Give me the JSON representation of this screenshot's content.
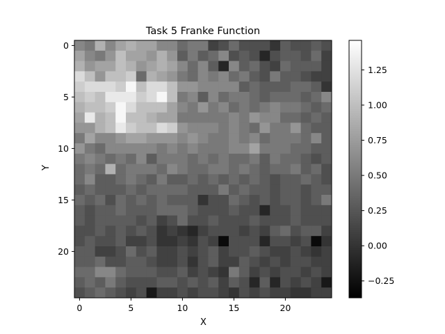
{
  "chart_data": {
    "type": "heatmap",
    "title": "Task 5 Franke Function",
    "xlabel": "X",
    "ylabel": "Y",
    "colormap": "gray",
    "rows": 25,
    "cols": 25,
    "xlim": [
      -0.5,
      24.5
    ],
    "ylim": [
      24.5,
      -0.5
    ],
    "x_ticks": [
      0,
      5,
      10,
      15,
      20
    ],
    "y_ticks": [
      0,
      5,
      10,
      15,
      20
    ],
    "colorbar": {
      "vmin": -0.37,
      "vmax": 1.46,
      "ticks": [
        -0.25,
        0.0,
        0.25,
        0.5,
        0.75,
        1.0,
        1.25
      ],
      "tick_labels": [
        "−0.25",
        "0.00",
        "0.25",
        "0.50",
        "0.75",
        "1.00",
        "1.25"
      ]
    },
    "values": [
      [
        0.6,
        0.5,
        0.9,
        0.6,
        0.8,
        0.9,
        0.8,
        0.8,
        0.6,
        0.6,
        0.4,
        0.5,
        0.5,
        0.1,
        0.2,
        0.4,
        0.2,
        0.2,
        0.2,
        0.0,
        0.3,
        0.2,
        0.2,
        0.3,
        0.2
      ],
      [
        0.8,
        0.6,
        0.5,
        0.7,
        1.0,
        0.8,
        0.8,
        0.7,
        0.9,
        0.7,
        0.3,
        0.5,
        0.3,
        0.4,
        0.6,
        0.2,
        0.3,
        0.2,
        -0.1,
        0.2,
        0.3,
        0.3,
        0.2,
        0.4,
        0.1
      ],
      [
        0.9,
        0.7,
        0.8,
        0.8,
        1.0,
        0.9,
        0.7,
        0.8,
        0.9,
        0.8,
        0.6,
        0.4,
        0.6,
        0.3,
        -0.1,
        0.6,
        0.3,
        0.4,
        0.2,
        0.1,
        0.4,
        0.3,
        0.3,
        0.3,
        0.1
      ],
      [
        1.2,
        1.0,
        0.7,
        1.0,
        1.0,
        1.1,
        0.4,
        0.9,
        0.8,
        0.7,
        0.5,
        0.4,
        0.6,
        0.5,
        0.6,
        0.4,
        0.5,
        0.3,
        0.2,
        0.5,
        0.3,
        0.3,
        0.2,
        0.1,
        0.1
      ],
      [
        1.1,
        1.2,
        1.2,
        1.2,
        1.1,
        1.4,
        1.0,
        1.2,
        1.2,
        1.0,
        0.7,
        0.7,
        0.6,
        0.6,
        0.6,
        0.6,
        0.3,
        0.4,
        0.3,
        0.3,
        0.3,
        0.4,
        0.4,
        0.3,
        0.0
      ],
      [
        1.0,
        1.1,
        1.0,
        1.3,
        1.3,
        1.3,
        1.1,
        1.2,
        1.4,
        1.0,
        0.5,
        0.6,
        0.3,
        0.6,
        0.4,
        0.5,
        0.5,
        0.4,
        0.3,
        0.4,
        0.4,
        0.4,
        0.3,
        0.4,
        0.6
      ],
      [
        0.9,
        1.0,
        1.0,
        1.1,
        1.4,
        1.2,
        1.0,
        1.0,
        1.0,
        0.8,
        0.6,
        0.5,
        0.7,
        0.5,
        0.6,
        0.4,
        0.5,
        0.4,
        0.5,
        0.6,
        0.5,
        0.5,
        0.4,
        0.3,
        0.4
      ],
      [
        0.8,
        1.3,
        0.9,
        1.0,
        1.4,
        1.0,
        1.0,
        0.9,
        0.8,
        0.8,
        0.5,
        0.5,
        0.5,
        0.5,
        0.5,
        0.6,
        0.5,
        0.7,
        0.6,
        0.6,
        0.4,
        0.4,
        0.3,
        0.4,
        0.3
      ],
      [
        0.7,
        0.7,
        0.9,
        1.0,
        1.3,
        1.1,
        1.0,
        1.0,
        1.2,
        1.1,
        0.7,
        0.6,
        0.6,
        0.6,
        0.5,
        0.6,
        0.5,
        0.4,
        0.7,
        0.5,
        0.5,
        0.7,
        0.4,
        0.3,
        0.3
      ],
      [
        0.5,
        0.8,
        0.6,
        0.6,
        0.7,
        0.8,
        0.8,
        0.7,
        0.7,
        0.7,
        0.6,
        0.7,
        0.6,
        0.5,
        0.5,
        0.6,
        0.5,
        0.6,
        0.4,
        0.5,
        0.5,
        0.5,
        0.4,
        0.6,
        0.3
      ],
      [
        0.7,
        0.5,
        0.4,
        0.6,
        0.6,
        0.6,
        0.6,
        0.6,
        0.5,
        0.6,
        0.5,
        0.6,
        0.5,
        0.5,
        0.5,
        0.6,
        0.6,
        0.8,
        0.5,
        0.5,
        0.5,
        0.4,
        0.4,
        0.3,
        0.3
      ],
      [
        0.5,
        0.6,
        0.5,
        0.4,
        0.5,
        0.4,
        0.6,
        0.3,
        0.5,
        0.5,
        0.5,
        0.4,
        0.5,
        0.4,
        0.5,
        0.4,
        0.4,
        0.5,
        0.3,
        0.5,
        0.4,
        0.4,
        0.3,
        0.2,
        0.3
      ],
      [
        0.4,
        0.5,
        0.4,
        0.9,
        0.4,
        0.5,
        0.5,
        0.5,
        0.4,
        0.6,
        0.5,
        0.4,
        0.4,
        0.5,
        0.5,
        0.4,
        0.5,
        0.4,
        0.3,
        0.4,
        0.4,
        0.5,
        0.3,
        0.4,
        0.2
      ],
      [
        0.4,
        0.6,
        0.3,
        0.3,
        0.4,
        0.5,
        0.4,
        0.3,
        0.5,
        0.3,
        0.3,
        0.4,
        0.3,
        0.4,
        0.3,
        0.4,
        0.3,
        0.4,
        0.3,
        0.2,
        0.3,
        0.3,
        0.4,
        0.3,
        0.2
      ],
      [
        0.3,
        0.4,
        0.3,
        0.3,
        0.3,
        0.4,
        0.3,
        0.4,
        0.4,
        0.4,
        0.4,
        0.3,
        0.3,
        0.3,
        0.5,
        0.3,
        0.4,
        0.3,
        0.3,
        0.2,
        0.3,
        0.3,
        0.2,
        0.3,
        0.3
      ],
      [
        0.4,
        0.3,
        0.4,
        0.2,
        0.4,
        0.3,
        0.4,
        0.3,
        0.4,
        0.3,
        0.3,
        0.3,
        0.0,
        0.2,
        0.2,
        0.4,
        0.3,
        0.2,
        0.3,
        0.2,
        0.3,
        0.3,
        0.2,
        0.3,
        0.5
      ],
      [
        0.3,
        0.2,
        0.3,
        0.3,
        0.4,
        0.3,
        0.3,
        0.3,
        0.4,
        0.4,
        0.4,
        0.3,
        0.2,
        0.2,
        0.2,
        0.3,
        0.2,
        0.2,
        -0.1,
        0.2,
        0.2,
        0.3,
        0.2,
        0.2,
        0.2
      ],
      [
        0.3,
        0.2,
        0.3,
        0.3,
        0.3,
        0.3,
        0.2,
        0.3,
        0.1,
        0.2,
        0.4,
        0.2,
        0.2,
        0.3,
        0.2,
        0.2,
        0.2,
        0.3,
        0.2,
        0.2,
        0.2,
        0.3,
        0.2,
        0.2,
        0.2
      ],
      [
        0.2,
        0.2,
        0.3,
        0.2,
        0.3,
        0.2,
        0.3,
        0.2,
        0.0,
        0.1,
        0.0,
        -0.1,
        0.1,
        0.2,
        0.2,
        0.2,
        0.1,
        0.2,
        0.1,
        0.3,
        0.4,
        0.2,
        0.3,
        0.3,
        0.1
      ],
      [
        0.2,
        0.3,
        0.2,
        0.2,
        0.3,
        0.1,
        0.1,
        0.2,
        0.0,
        0.0,
        0.1,
        0.0,
        0.2,
        0.1,
        -0.3,
        0.2,
        0.2,
        0.2,
        -0.1,
        0.2,
        0.2,
        0.1,
        0.2,
        -0.3,
        0.0
      ],
      [
        0.3,
        0.3,
        0.1,
        0.1,
        0.2,
        0.4,
        0.2,
        0.3,
        0.1,
        0.1,
        0.2,
        0.1,
        0.2,
        0.3,
        0.1,
        0.2,
        0.2,
        0.3,
        0.2,
        0.1,
        0.1,
        0.2,
        0.1,
        0.0,
        0.1
      ],
      [
        0.3,
        0.3,
        0.4,
        0.2,
        0.2,
        0.3,
        0.3,
        0.2,
        0.1,
        0.1,
        0.2,
        0.0,
        0.2,
        0.3,
        0.1,
        0.1,
        0.3,
        0.2,
        0.1,
        0.2,
        0.1,
        0.2,
        0.2,
        0.1,
        0.1
      ],
      [
        0.4,
        0.4,
        0.6,
        0.6,
        0.4,
        0.3,
        0.3,
        0.3,
        0.2,
        0.2,
        0.3,
        0.1,
        0.2,
        0.1,
        0.0,
        0.5,
        0.3,
        0.1,
        0.2,
        0.1,
        0.2,
        0.2,
        0.1,
        0.2,
        0.1
      ],
      [
        0.3,
        0.4,
        0.3,
        0.5,
        0.3,
        0.2,
        0.2,
        0.2,
        0.3,
        0.3,
        0.2,
        0.3,
        0.2,
        0.3,
        0.1,
        0.3,
        0.2,
        -0.1,
        0.3,
        -0.1,
        0.2,
        0.1,
        0.2,
        0.1,
        -0.2
      ],
      [
        0.2,
        0.3,
        0.4,
        0.3,
        0.2,
        0.1,
        0.2,
        -0.2,
        0.1,
        0.1,
        0.2,
        0.1,
        0.2,
        0.2,
        0.1,
        0.0,
        0.2,
        0.1,
        0.2,
        0.1,
        0.1,
        0.0,
        0.0,
        0.1,
        0.1
      ]
    ]
  }
}
